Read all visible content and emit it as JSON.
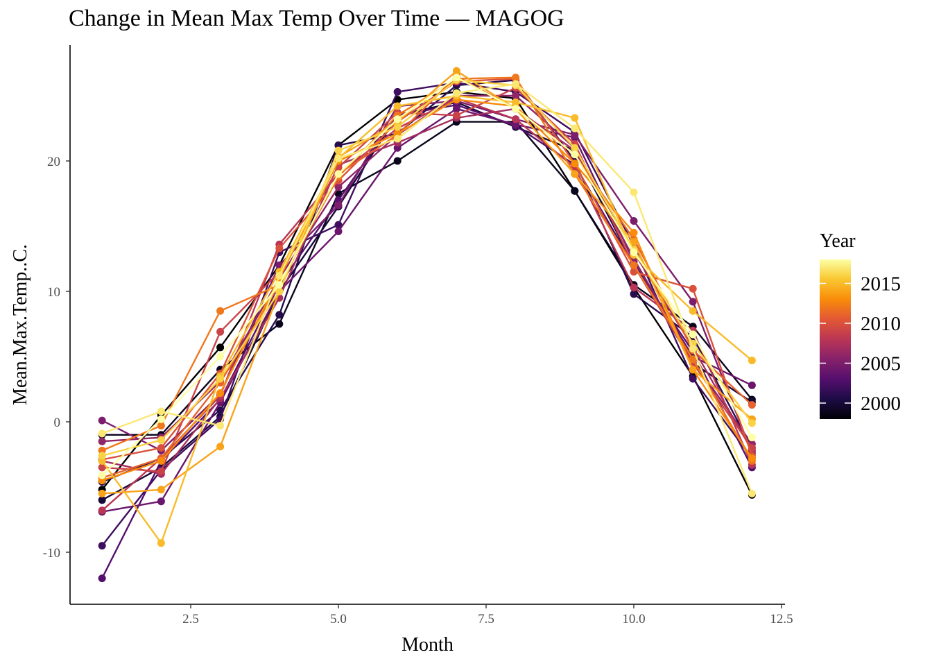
{
  "chart_data": {
    "type": "line",
    "title": "Change in Mean Max Temp Over Time — MAGOG",
    "xlabel": "Month",
    "ylabel": "Mean.Max.Temp..C.",
    "xlim": [
      0.5,
      12.5
    ],
    "ylim": [
      -14,
      30
    ],
    "x_ticks": [
      2.5,
      5.0,
      7.5,
      10.0,
      12.5
    ],
    "y_ticks": [
      -10,
      0,
      10,
      20
    ],
    "x_tick_labels": [
      "2.5",
      "5.0",
      "7.5",
      "10.0",
      "12.5"
    ],
    "y_tick_labels": [
      "-10",
      "0",
      "10",
      "20"
    ],
    "grid": false,
    "legend": {
      "title": "Year",
      "placement": "right",
      "type": "colorbar",
      "palette": "inferno",
      "range": [
        1998,
        2018
      ],
      "breaks": [
        2000,
        2005,
        2010,
        2015
      ],
      "break_labels": [
        "2000",
        "2005",
        "2010",
        "2015"
      ]
    },
    "x": [
      1,
      2,
      3,
      4,
      5,
      6,
      7,
      8,
      9,
      10,
      11,
      12
    ],
    "series": [
      {
        "year": 1998,
        "values": [
          -5.2,
          0.5,
          5.7,
          12.0,
          21.2,
          24.7,
          25.3,
          24.8,
          17.7,
          10.3,
          3.5,
          -5.6
        ]
      },
      {
        "year": 1999,
        "values": [
          -1.0,
          -1.0,
          4.0,
          7.5,
          17.5,
          20.0,
          23.0,
          23.0,
          17.7,
          10.5,
          7.3,
          1.7
        ]
      },
      {
        "year": 2000,
        "values": [
          -6.0,
          -3.5,
          0.4,
          10.0,
          16.5,
          23.5,
          24.5,
          22.6,
          20.8,
          12.0,
          4.5,
          1.5
        ]
      },
      {
        "year": 2001,
        "values": [
          -4.6,
          -2.8,
          0.9,
          8.2,
          21.2,
          22.1,
          25.8,
          26.2,
          20.0,
          9.8,
          6.5,
          -2.0
        ]
      },
      {
        "year": 2002,
        "values": [
          -9.5,
          -3.7,
          0.2,
          13.0,
          15.1,
          25.3,
          26.0,
          25.3,
          22.2,
          13.5,
          3.3,
          -2.8
        ]
      },
      {
        "year": 2003,
        "values": [
          -12.0,
          -3.0,
          1.7,
          10.5,
          17.0,
          23.5,
          24.3,
          22.7,
          19.7,
          12.0,
          5.4,
          -3.5
        ]
      },
      {
        "year": 2004,
        "values": [
          -6.9,
          -6.1,
          1.5,
          10.0,
          14.6,
          21.0,
          24.0,
          22.8,
          21.8,
          12.3,
          5.0,
          2.8
        ]
      },
      {
        "year": 2005,
        "values": [
          0.1,
          -2.2,
          2.1,
          12.0,
          16.6,
          24.2,
          24.6,
          23.2,
          22.0,
          15.4,
          9.2,
          -2.4
        ]
      },
      {
        "year": 2006,
        "values": [
          -1.5,
          -1.2,
          3.1,
          11.0,
          18.0,
          22.0,
          25.0,
          25.0,
          21.0,
          12.5,
          4.7,
          -1.7
        ]
      },
      {
        "year": 2007,
        "values": [
          -3.0,
          -4.0,
          1.8,
          9.5,
          19.7,
          21.4,
          23.3,
          24.0,
          20.8,
          13.0,
          5.7,
          -2.2
        ]
      },
      {
        "year": 2008,
        "values": [
          -6.8,
          -2.8,
          2.0,
          13.6,
          19.0,
          22.5,
          24.8,
          23.2,
          19.5,
          10.3,
          7.0,
          -3.3
        ]
      },
      {
        "year": 2009,
        "values": [
          -3.5,
          -3.8,
          6.9,
          11.5,
          19.5,
          23.7,
          23.5,
          25.6,
          21.3,
          12.0,
          4.5,
          -2.0
        ]
      },
      {
        "year": 2010,
        "values": [
          -2.9,
          -2.0,
          3.7,
          13.3,
          18.5,
          23.0,
          26.1,
          26.3,
          19.8,
          11.5,
          10.2,
          -2.6
        ]
      },
      {
        "year": 2011,
        "values": [
          -4.3,
          -2.8,
          3.0,
          10.5,
          19.0,
          22.0,
          26.5,
          24.0,
          20.5,
          14.0,
          5.5,
          1.3
        ]
      },
      {
        "year": 2012,
        "values": [
          -2.2,
          -0.3,
          8.5,
          10.5,
          18.8,
          23.5,
          26.3,
          26.4,
          19.0,
          12.0,
          4.8,
          -3.0
        ]
      },
      {
        "year": 2013,
        "values": [
          -4.5,
          -3.0,
          2.2,
          11.0,
          20.0,
          22.1,
          24.7,
          24.2,
          19.8,
          14.5,
          4.0,
          -2.8
        ]
      },
      {
        "year": 2014,
        "values": [
          -5.5,
          -5.2,
          -1.9,
          10.0,
          20.3,
          23.0,
          26.9,
          24.0,
          19.0,
          13.8,
          4.0,
          0.2
        ]
      },
      {
        "year": 2015,
        "values": [
          -3.0,
          -9.3,
          3.5,
          11.5,
          20.2,
          24.2,
          25.0,
          24.5,
          23.3,
          12.8,
          8.5,
          4.7
        ]
      },
      {
        "year": 2016,
        "values": [
          -2.6,
          -1.4,
          3.3,
          10.0,
          20.8,
          22.6,
          26.2,
          25.8,
          21.0,
          13.2,
          6.0,
          -0.1
        ]
      },
      {
        "year": 2017,
        "values": [
          -0.9,
          0.8,
          -0.3,
          11.2,
          20.2,
          21.7,
          25.2,
          25.9,
          22.5,
          17.6,
          5.6,
          -5.5
        ]
      },
      {
        "year": 2018,
        "values": [
          -4.1,
          0.2,
          5.0,
          10.5,
          19.0,
          23.2,
          26.4,
          24.0,
          20.5,
          13.0,
          6.7,
          -1.2
        ]
      }
    ]
  }
}
